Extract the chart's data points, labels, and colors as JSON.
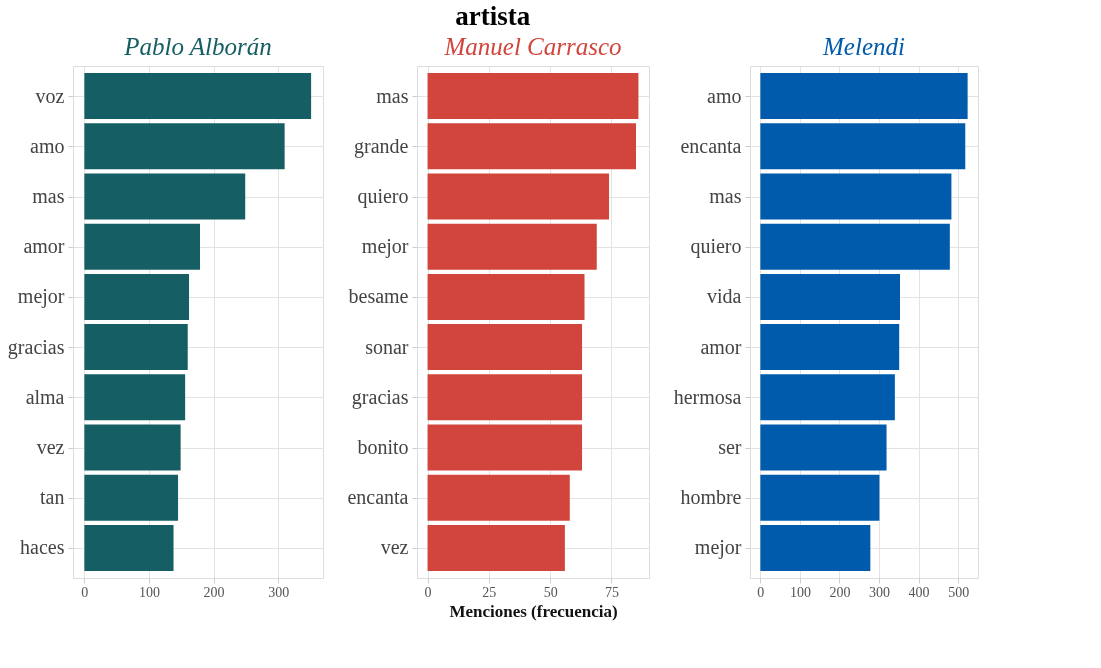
{
  "chart_data": [
    {
      "type": "bar",
      "orientation": "horizontal",
      "title": "Pablo Alborán",
      "categories": [
        "voz",
        "amo",
        "mas",
        "amor",
        "mejor",
        "gracias",
        "alma",
        "vez",
        "tan",
        "haces"
      ],
      "values": [
        351,
        310,
        249,
        179,
        162,
        160,
        156,
        149,
        145,
        138
      ],
      "color": "#155e63",
      "xlim": [
        -17.6,
        369.4
      ],
      "xticks": [
        0,
        100,
        200,
        300
      ],
      "grid": true
    },
    {
      "type": "bar",
      "orientation": "horizontal",
      "title": "Manuel Carrasco",
      "xlabel": "Menciones (frecuencia)",
      "annotations": [
        "artista"
      ],
      "categories": [
        "mas",
        "grande",
        "quiero",
        "mejor",
        "besame",
        "sonar",
        "gracias",
        "bonito",
        "encanta",
        "vez"
      ],
      "values": [
        86,
        85,
        74,
        69,
        64,
        63,
        63,
        63,
        58,
        56
      ],
      "color": "#d2453d",
      "xlim": [
        -4.3,
        90.3
      ],
      "xticks": [
        0,
        25,
        50,
        75
      ],
      "grid": true
    },
    {
      "type": "bar",
      "orientation": "horizontal",
      "title": "Melendi",
      "categories": [
        "amo",
        "encanta",
        "mas",
        "quiero",
        "vida",
        "amor",
        "hermosa",
        "ser",
        "hombre",
        "mejor"
      ],
      "values": [
        524,
        518,
        483,
        479,
        353,
        351,
        340,
        319,
        301,
        278
      ],
      "color": "#005bac",
      "xlim": [
        -26.2,
        550.2
      ],
      "xticks": [
        0,
        100,
        200,
        300,
        400,
        500
      ],
      "grid": true
    }
  ]
}
